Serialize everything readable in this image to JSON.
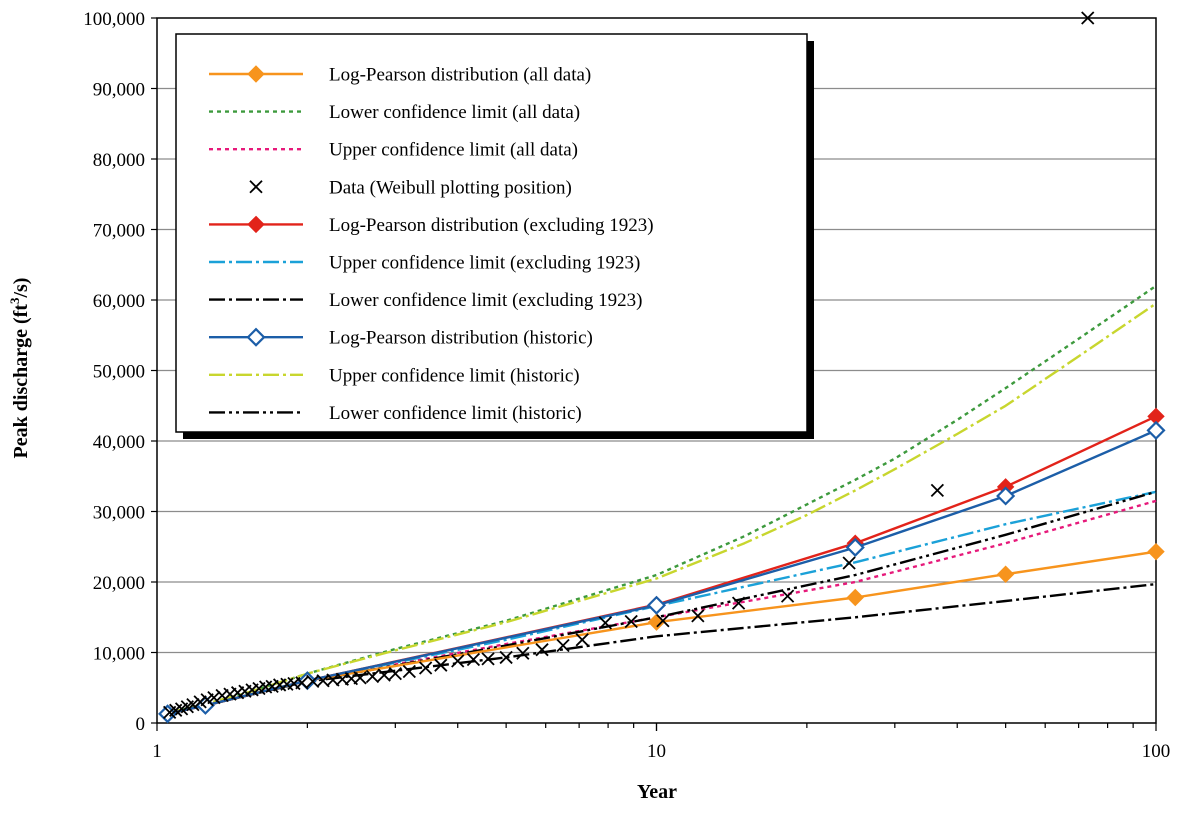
{
  "chart_data": {
    "type": "line",
    "xlabel": "Year",
    "ylabel_parts": [
      "Peak discharge (ft",
      "3",
      "/s)"
    ],
    "x_scale": "log",
    "xlim": [
      1,
      100
    ],
    "ylim": [
      0,
      100000
    ],
    "x_ticks": [
      1,
      10,
      100
    ],
    "x_tick_labels": [
      "1",
      "10",
      "100"
    ],
    "y_ticks": [
      0,
      10000,
      20000,
      30000,
      40000,
      50000,
      60000,
      70000,
      80000,
      90000,
      100000
    ],
    "y_tick_labels": [
      "0",
      "10,000",
      "20,000",
      "30,000",
      "40,000",
      "50,000",
      "60,000",
      "70,000",
      "80,000",
      "90,000",
      "100,000"
    ],
    "grid": "horizontal",
    "legend_position": "top-left",
    "series": [
      {
        "name": "Log-Pearson distribution (all data)",
        "color": "#F7941D",
        "dash": "",
        "marker": "diamond-filled",
        "x": [
          1.05,
          1.25,
          2,
          10,
          25,
          50,
          100
        ],
        "y": [
          1300,
          2500,
          6000,
          14300,
          17800,
          21100,
          24300
        ]
      },
      {
        "name": "Lower confidence limit (all data)",
        "color": "#3D9A3D",
        "dash": "4 4",
        "marker": "none",
        "x": [
          1.05,
          1.25,
          1.5,
          2,
          3,
          5,
          10,
          15,
          20,
          25,
          30,
          40,
          50,
          70,
          100
        ],
        "y": [
          1400,
          2700,
          4200,
          7000,
          10500,
          14500,
          21000,
          26500,
          31000,
          34500,
          37500,
          43000,
          47500,
          54500,
          62000
        ]
      },
      {
        "name": "Upper confidence limit (all data)",
        "color": "#E6197A",
        "dash": "4 4",
        "marker": "none",
        "x": [
          1.05,
          1.25,
          2,
          5,
          10,
          25,
          50,
          100
        ],
        "y": [
          1300,
          2500,
          6000,
          11200,
          15000,
          20000,
          25500,
          31500
        ]
      },
      {
        "name": "Data (Weibull plotting position)",
        "color": "#000000",
        "dash": "",
        "marker": "x",
        "x": [
          1.06,
          1.09,
          1.12,
          1.15,
          1.18,
          1.22,
          1.26,
          1.3,
          1.35,
          1.4,
          1.45,
          1.5,
          1.55,
          1.6,
          1.65,
          1.7,
          1.76,
          1.82,
          1.88,
          1.95,
          2.05,
          2.15,
          2.25,
          2.35,
          2.45,
          2.55,
          2.7,
          2.85,
          3.0,
          3.2,
          3.45,
          3.7,
          4.0,
          4.3,
          4.6,
          5.0,
          5.4,
          5.9,
          6.5,
          7.1,
          7.9,
          8.9,
          10.3,
          12.1,
          14.6,
          18.3,
          24.3,
          36.5,
          73
        ],
        "y": [
          1500,
          1800,
          2000,
          2300,
          2600,
          3000,
          3300,
          3600,
          3900,
          4100,
          4300,
          4500,
          4700,
          4900,
          5100,
          5200,
          5400,
          5500,
          5600,
          5700,
          5900,
          6000,
          6100,
          6200,
          6300,
          6400,
          6600,
          6800,
          7000,
          7300,
          7800,
          8200,
          8800,
          9000,
          9100,
          9300,
          9900,
          10400,
          11000,
          11800,
          14200,
          14400,
          14500,
          15200,
          17000,
          18000,
          22700,
          33000,
          100000
        ]
      },
      {
        "name": "Log-Pearson distribution (excluding 1923)",
        "color": "#E2231A",
        "dash": "",
        "marker": "diamond-filled",
        "x": [
          1.05,
          1.25,
          2,
          10,
          25,
          50,
          100
        ],
        "y": [
          1300,
          2500,
          6000,
          16800,
          25500,
          33500,
          43500
        ]
      },
      {
        "name": "Upper confidence limit (excluding 1923)",
        "color": "#1BA1D8",
        "dash": "16 4 3 4",
        "marker": "none",
        "x": [
          1.05,
          1.25,
          2,
          5,
          10,
          25,
          50,
          100
        ],
        "y": [
          1300,
          2500,
          6000,
          11800,
          16600,
          22800,
          28200,
          32800
        ]
      },
      {
        "name": "Lower confidence limit (excluding 1923)",
        "color": "#000000",
        "dash": "16 4 3 4",
        "marker": "none",
        "x": [
          1.05,
          1.25,
          2,
          5,
          10,
          25,
          50,
          100
        ],
        "y": [
          1300,
          2500,
          5900,
          9300,
          12300,
          15000,
          17300,
          19700
        ]
      },
      {
        "name": "Log-Pearson distribution (historic)",
        "color": "#1C5EA8",
        "dash": "",
        "marker": "diamond-open",
        "x": [
          1.05,
          1.25,
          2,
          10,
          25,
          50,
          100
        ],
        "y": [
          1300,
          2500,
          6000,
          16700,
          24900,
          32200,
          41500
        ]
      },
      {
        "name": "Upper confidence limit (historic)",
        "color": "#C8D62E",
        "dash": "16 4 3 4",
        "marker": "none",
        "x": [
          1.05,
          1.25,
          1.5,
          2,
          3,
          5,
          10,
          15,
          20,
          25,
          30,
          40,
          50,
          70,
          100
        ],
        "y": [
          1400,
          2700,
          4200,
          7000,
          10300,
          14300,
          20500,
          25500,
          29500,
          33000,
          36000,
          41000,
          45000,
          52000,
          59500
        ]
      },
      {
        "name": "Lower confidence limit (historic)",
        "color": "#000000",
        "dash": "16 4 3 4 3 4",
        "marker": "none",
        "x": [
          1.05,
          1.25,
          2,
          5,
          10,
          25,
          50,
          100
        ],
        "y": [
          1300,
          2500,
          5900,
          11000,
          15000,
          21000,
          26700,
          32800
        ]
      }
    ]
  }
}
